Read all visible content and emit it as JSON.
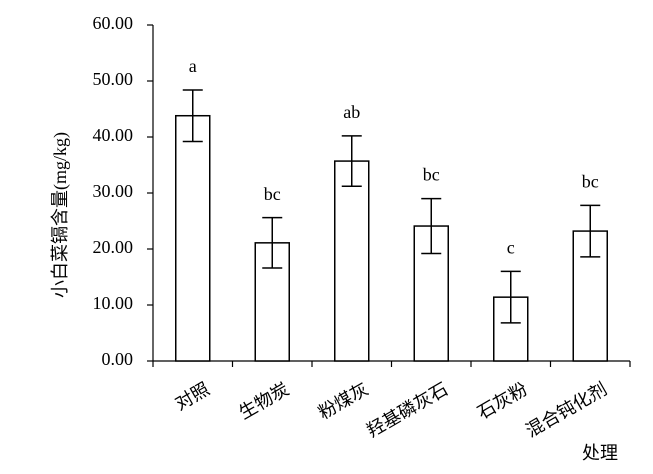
{
  "chart_data": {
    "type": "bar",
    "y_label": "小白菜镉含量(mg/kg)",
    "x_label": "处理",
    "categories": [
      "对照",
      "生物炭",
      "粉煤灰",
      "羟基磷灰石",
      "石灰粉",
      "混合钝化剂"
    ],
    "values": [
      43.8,
      21.1,
      35.7,
      24.1,
      11.4,
      23.2
    ],
    "errors": [
      4.6,
      4.5,
      4.5,
      4.9,
      4.6,
      4.6
    ],
    "significance": [
      "a",
      "bc",
      "ab",
      "bc",
      "c",
      "bc"
    ],
    "color": "#ffffff",
    "edge_color": "#000000",
    "ylim": [
      0,
      60
    ],
    "yticks": [
      {
        "value": 0,
        "label": "0.00"
      },
      {
        "value": 10,
        "label": "10.00"
      },
      {
        "value": 20,
        "label": "20.00"
      },
      {
        "value": 30,
        "label": "30.00"
      },
      {
        "value": 40,
        "label": "40.00"
      },
      {
        "value": 50,
        "label": "50.00"
      },
      {
        "value": 60,
        "label": "60.00"
      }
    ],
    "grid": false
  }
}
